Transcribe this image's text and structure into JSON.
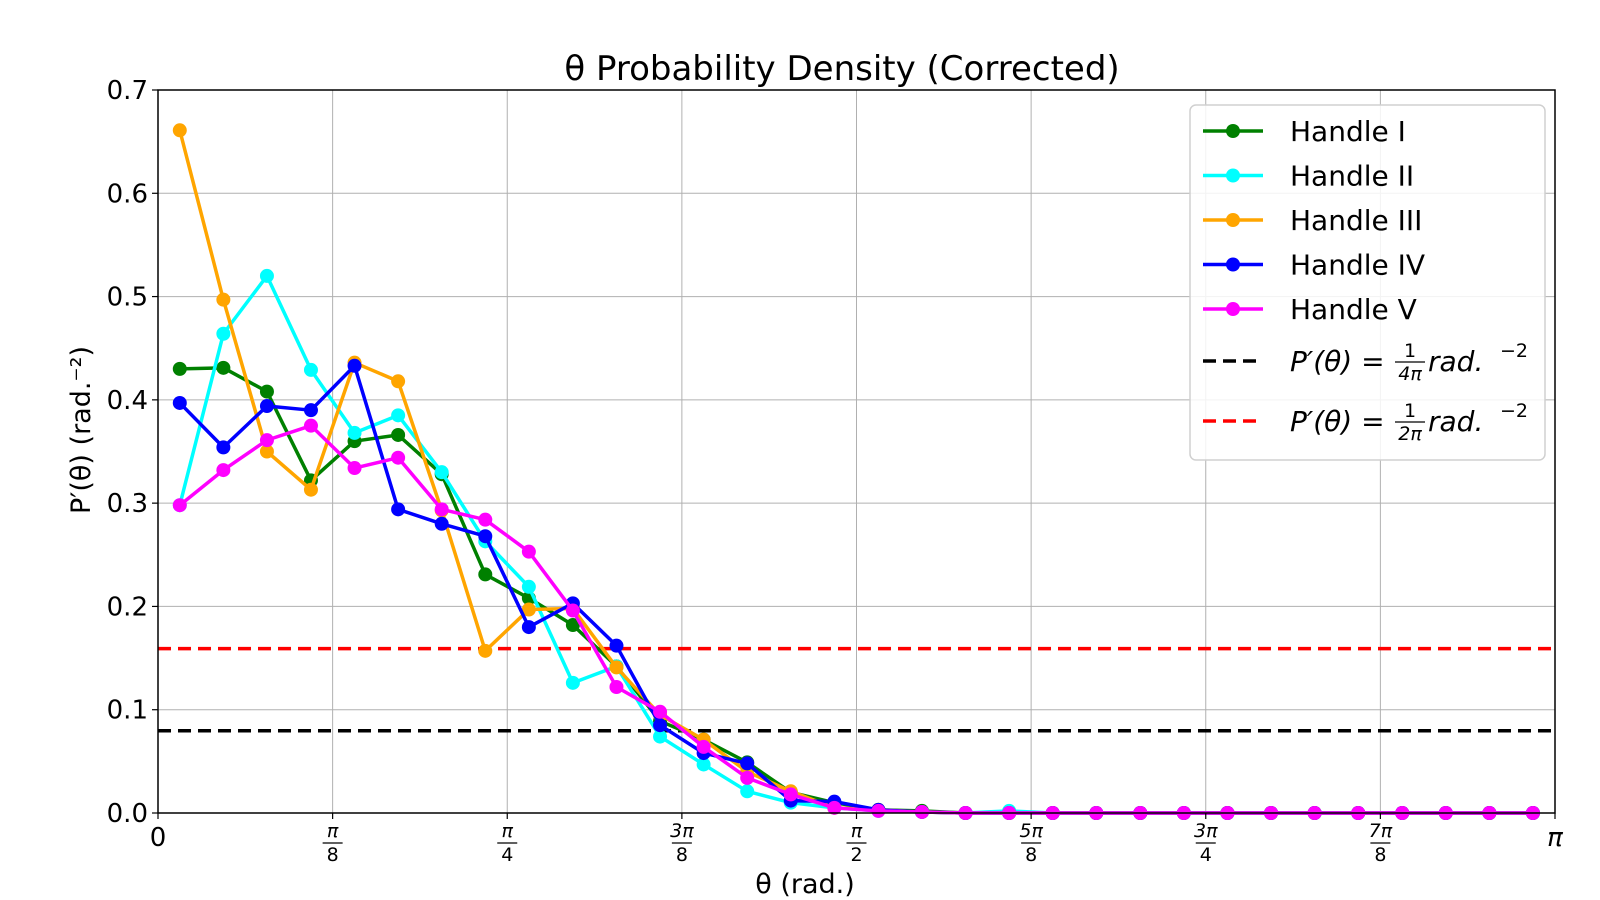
{
  "chart_data": {
    "type": "line",
    "title": "θ Probability Density (Corrected)",
    "xlabel": "θ (rad.)",
    "ylabel": "P′(θ) (rad.⁻²)",
    "xlim": [
      0,
      3.14159
    ],
    "ylim": [
      0,
      0.7
    ],
    "grid": true,
    "legend_position": "top-right",
    "x_ticks": [
      {
        "value": 0,
        "label": "0"
      },
      {
        "value": 0.3927,
        "num": "π",
        "den": "8"
      },
      {
        "value": 0.7854,
        "num": "π",
        "den": "4"
      },
      {
        "value": 1.1781,
        "num": "3π",
        "den": "8"
      },
      {
        "value": 1.5708,
        "num": "π",
        "den": "2"
      },
      {
        "value": 1.9635,
        "num": "5π",
        "den": "8"
      },
      {
        "value": 2.3562,
        "num": "3π",
        "den": "4"
      },
      {
        "value": 2.7489,
        "num": "7π",
        "den": "8"
      },
      {
        "value": 3.14159,
        "label": "π"
      }
    ],
    "y_ticks": [
      "0.0",
      "0.1",
      "0.2",
      "0.3",
      "0.4",
      "0.5",
      "0.6",
      "0.7"
    ],
    "x": [
      0.049,
      0.147,
      0.245,
      0.344,
      0.442,
      0.54,
      0.638,
      0.736,
      0.834,
      0.933,
      1.031,
      1.129,
      1.227,
      1.325,
      1.423,
      1.521,
      1.62,
      1.718,
      1.816,
      1.914,
      2.012,
      2.11,
      2.209,
      2.307,
      2.405,
      2.503,
      2.601,
      2.699,
      2.798,
      2.896,
      2.994,
      3.092
    ],
    "series": [
      {
        "name": "Handle I",
        "color": "#008000",
        "style": "solid",
        "values": [
          0.43,
          0.431,
          0.408,
          0.322,
          0.36,
          0.366,
          0.328,
          0.231,
          0.208,
          0.182,
          0.142,
          0.089,
          0.071,
          0.049,
          0.02,
          0.01,
          0.003,
          0.002,
          0,
          0,
          0,
          0,
          0,
          0,
          0,
          0,
          0,
          0,
          0,
          0,
          0,
          0
        ]
      },
      {
        "name": "Handle II",
        "color": "#00ffff",
        "style": "solid",
        "values": [
          0.298,
          0.464,
          0.52,
          0.429,
          0.368,
          0.385,
          0.33,
          0.263,
          0.219,
          0.126,
          0.142,
          0.074,
          0.047,
          0.021,
          0.01,
          0.005,
          0.002,
          0.001,
          0,
          0.002,
          0,
          0,
          0,
          0,
          0,
          0,
          0,
          0,
          0,
          0,
          0,
          0
        ]
      },
      {
        "name": "Handle III",
        "color": "#ffa500",
        "style": "solid",
        "values": [
          0.661,
          0.497,
          0.35,
          0.313,
          0.436,
          0.418,
          0.293,
          0.157,
          0.197,
          0.198,
          0.141,
          0.095,
          0.071,
          0.04,
          0.021,
          0.005,
          0.003,
          0.001,
          0,
          0,
          0,
          0,
          0,
          0,
          0,
          0,
          0,
          0,
          0,
          0,
          0,
          0
        ]
      },
      {
        "name": "Handle IV",
        "color": "#0000ff",
        "style": "solid",
        "values": [
          0.397,
          0.354,
          0.394,
          0.39,
          0.433,
          0.294,
          0.28,
          0.268,
          0.18,
          0.203,
          0.162,
          0.085,
          0.058,
          0.048,
          0.012,
          0.011,
          0.003,
          0.001,
          0,
          0,
          0,
          0,
          0,
          0,
          0,
          0,
          0,
          0,
          0,
          0,
          0,
          0
        ]
      },
      {
        "name": "Handle V",
        "color": "#ff00ff",
        "style": "solid",
        "values": [
          0.298,
          0.332,
          0.361,
          0.375,
          0.334,
          0.344,
          0.294,
          0.284,
          0.253,
          0.196,
          0.122,
          0.098,
          0.064,
          0.034,
          0.018,
          0.005,
          0.002,
          0.001,
          0,
          0,
          0,
          0,
          0,
          0,
          0,
          0,
          0,
          0,
          0,
          0,
          0,
          0
        ]
      }
    ],
    "reference_lines": [
      {
        "lhs": "P′(θ) = ",
        "num": "1",
        "den": "4π",
        "rhs": " rad.",
        "sup": "−2",
        "value": 0.0796,
        "color": "#000000",
        "style": "dashed"
      },
      {
        "lhs": "P′(θ) = ",
        "num": "1",
        "den": "2π",
        "rhs": " rad.",
        "sup": "−2",
        "value": 0.1592,
        "color": "#ff0000",
        "style": "dashed"
      }
    ]
  }
}
